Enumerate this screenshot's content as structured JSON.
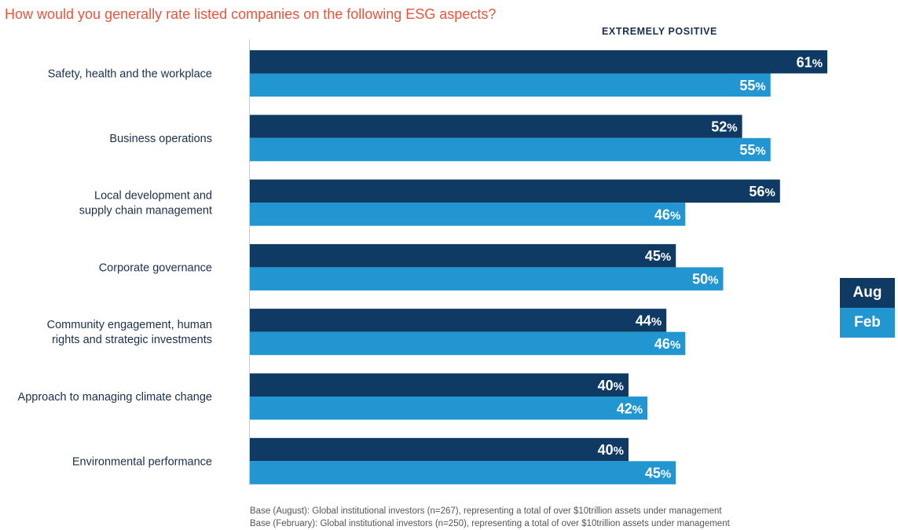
{
  "chart_data": {
    "type": "bar",
    "orientation": "horizontal",
    "title": "How would you generally rate listed companies on the following ESG aspects?",
    "subtitle": "EXTREMELY POSITIVE",
    "categories": [
      "Safety, health and the workplace",
      "Business operations",
      "Local development and supply chain management",
      "Corporate governance",
      "Community engagement, human rights and strategic investments",
      "Approach to managing climate change",
      "Environmental performance"
    ],
    "category_lines": [
      [
        "Safety, health and the workplace"
      ],
      [
        "Business operations"
      ],
      [
        "Local development and",
        "supply chain management"
      ],
      [
        "Corporate governance"
      ],
      [
        "Community engagement, human",
        "rights and strategic investments"
      ],
      [
        "Approach to managing climate change"
      ],
      [
        "Environmental performance"
      ]
    ],
    "series": [
      {
        "name": "Aug",
        "color": "#0f3a64",
        "values": [
          61,
          52,
          56,
          45,
          44,
          40,
          40
        ]
      },
      {
        "name": "Feb",
        "color": "#2196d0",
        "values": [
          55,
          55,
          46,
          50,
          46,
          42,
          45
        ]
      }
    ],
    "xlim": [
      0,
      100
    ],
    "value_suffix": "%",
    "legend_position": "right",
    "grid": false
  },
  "footnotes": [
    "Base (August): Global institutional investors (n=267), representing a total of over $10trillion assets under management",
    "Base (February): Global institutional investors (n=250), representing a total of over $10trillion assets under management"
  ]
}
